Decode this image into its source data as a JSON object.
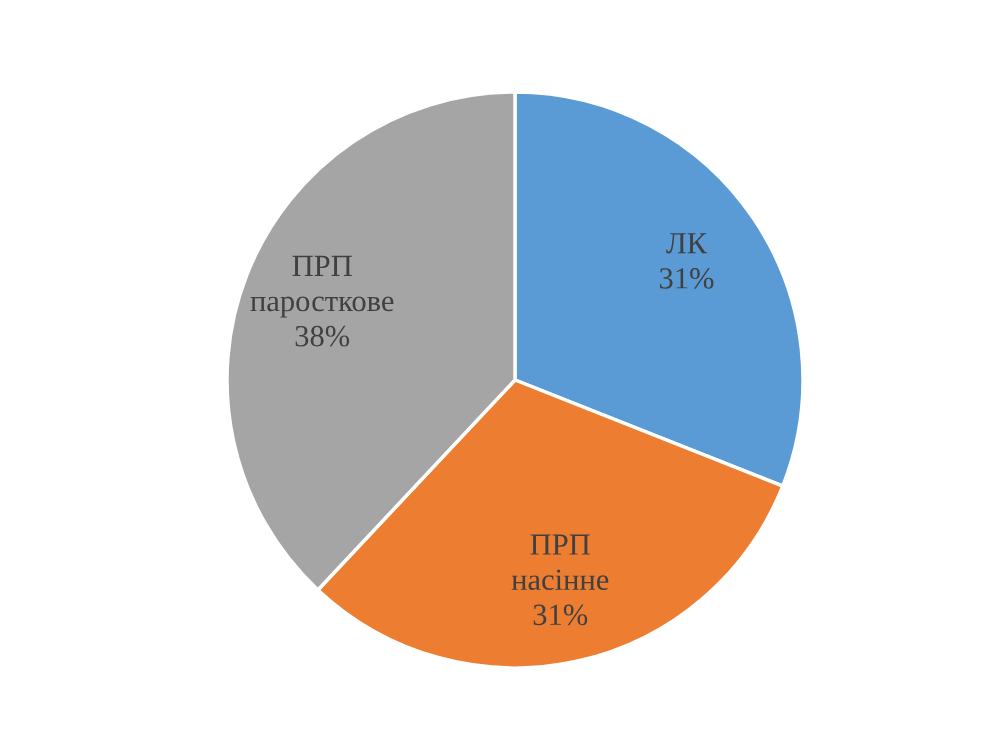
{
  "chart_data": {
    "type": "pie",
    "categories": [
      "ЛК",
      "ПРП\nнасінне",
      "ПРП\nпаросткове"
    ],
    "values": [
      31,
      31,
      38
    ],
    "value_labels": [
      "31%",
      "31%",
      "38%"
    ],
    "colors": [
      "#5b9bd5",
      "#ed7d31",
      "#a5a5a5"
    ],
    "legend": false
  }
}
